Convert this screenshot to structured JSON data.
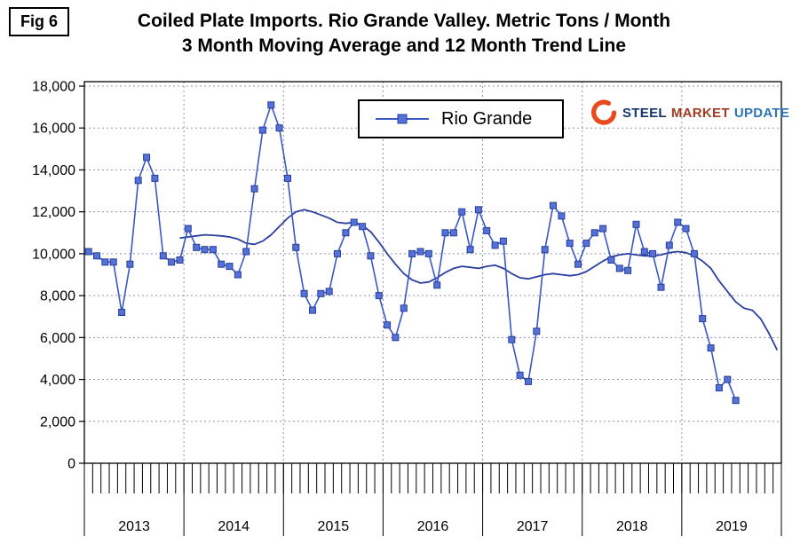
{
  "fig_label": "Fig 6",
  "title": {
    "line1": "Coiled Plate Imports. Rio Grande Valley. Metric Tons / Month",
    "line2": "3 Month Moving Average and 12 Month Trend Line"
  },
  "legend": {
    "label": "Rio Grande"
  },
  "logo": {
    "word1": "STEEL",
    "word2": "MARKET",
    "word3": "UPDATE",
    "word1_color": "#14356B",
    "word2_color": "#A23B22",
    "word3_color": "#2E74B5",
    "swoosh_color": "#E8491D"
  },
  "chart_data": {
    "type": "line",
    "title": "Coiled Plate Imports. Rio Grande Valley. Metric Tons / Month",
    "subtitle": "3 Month Moving Average and 12 Month Trend Line",
    "ylabel": "Metric Tons / Month",
    "ylim": [
      0,
      18000
    ],
    "y_tick_step": 2000,
    "y_ticks": [
      "0",
      "2,000",
      "4,000",
      "6,000",
      "8,000",
      "10,000",
      "12,000",
      "14,000",
      "16,000",
      "18,000"
    ],
    "x_years": [
      "2013",
      "2014",
      "2015",
      "2016",
      "2017",
      "2018",
      "2019"
    ],
    "x_months_total": 84,
    "grid": true,
    "grid_color": "#8A93A6",
    "legend_position": "top-center",
    "series": [
      {
        "name": "Rio Grande",
        "role": "3 month moving average",
        "type": "line+markers",
        "marker": "square",
        "color": "#3A57C8",
        "marker_fill": "#5570D6",
        "marker_stroke": "#27409C",
        "start_month_index": 0,
        "start_label": "2013-01",
        "values": [
          10100,
          9900,
          9600,
          9600,
          7200,
          9500,
          13500,
          14600,
          13600,
          9900,
          9600,
          9700,
          11200,
          10300,
          10200,
          10200,
          9500,
          9400,
          9000,
          10100,
          13100,
          15900,
          17100,
          16000,
          13600,
          10300,
          8100,
          7300,
          8100,
          8200,
          10000,
          11000,
          11500,
          11300,
          9900,
          8000,
          6600,
          6000,
          7400,
          10000,
          10100,
          10000,
          8500,
          11000,
          11000,
          12000,
          10200,
          12100,
          11100,
          10400,
          10600,
          5900,
          4200,
          3900,
          6300,
          10200,
          12300,
          11800,
          10500,
          9500,
          10500,
          11000,
          11200,
          9700,
          9300,
          9200,
          11400,
          10100,
          10000,
          8400,
          10400,
          11500,
          11200,
          10000,
          6900,
          5500,
          3600,
          4000,
          3000
        ]
      },
      {
        "name": "12 Month Trend Line",
        "role": "trend",
        "type": "line",
        "marker": "none",
        "color": "#2B3F9E",
        "start_month_index": 11,
        "values": [
          10750,
          10800,
          10850,
          10900,
          10880,
          10850,
          10800,
          10700,
          10500,
          10450,
          10600,
          10900,
          11300,
          11700,
          12000,
          12100,
          12000,
          11850,
          11700,
          11500,
          11450,
          11500,
          11350,
          11050,
          10550,
          10000,
          9500,
          9050,
          8750,
          8600,
          8650,
          8850,
          9100,
          9300,
          9400,
          9350,
          9300,
          9400,
          9450,
          9300,
          9050,
          8850,
          8800,
          8900,
          9000,
          9050,
          9000,
          8950,
          9000,
          9150,
          9400,
          9650,
          9850,
          9950,
          10000,
          9950,
          9900,
          9900,
          9950,
          10050,
          10100,
          10050,
          9900,
          9650,
          9300,
          8700,
          8200,
          7700,
          7400,
          7300,
          6900,
          6200,
          5400
        ]
      }
    ]
  }
}
